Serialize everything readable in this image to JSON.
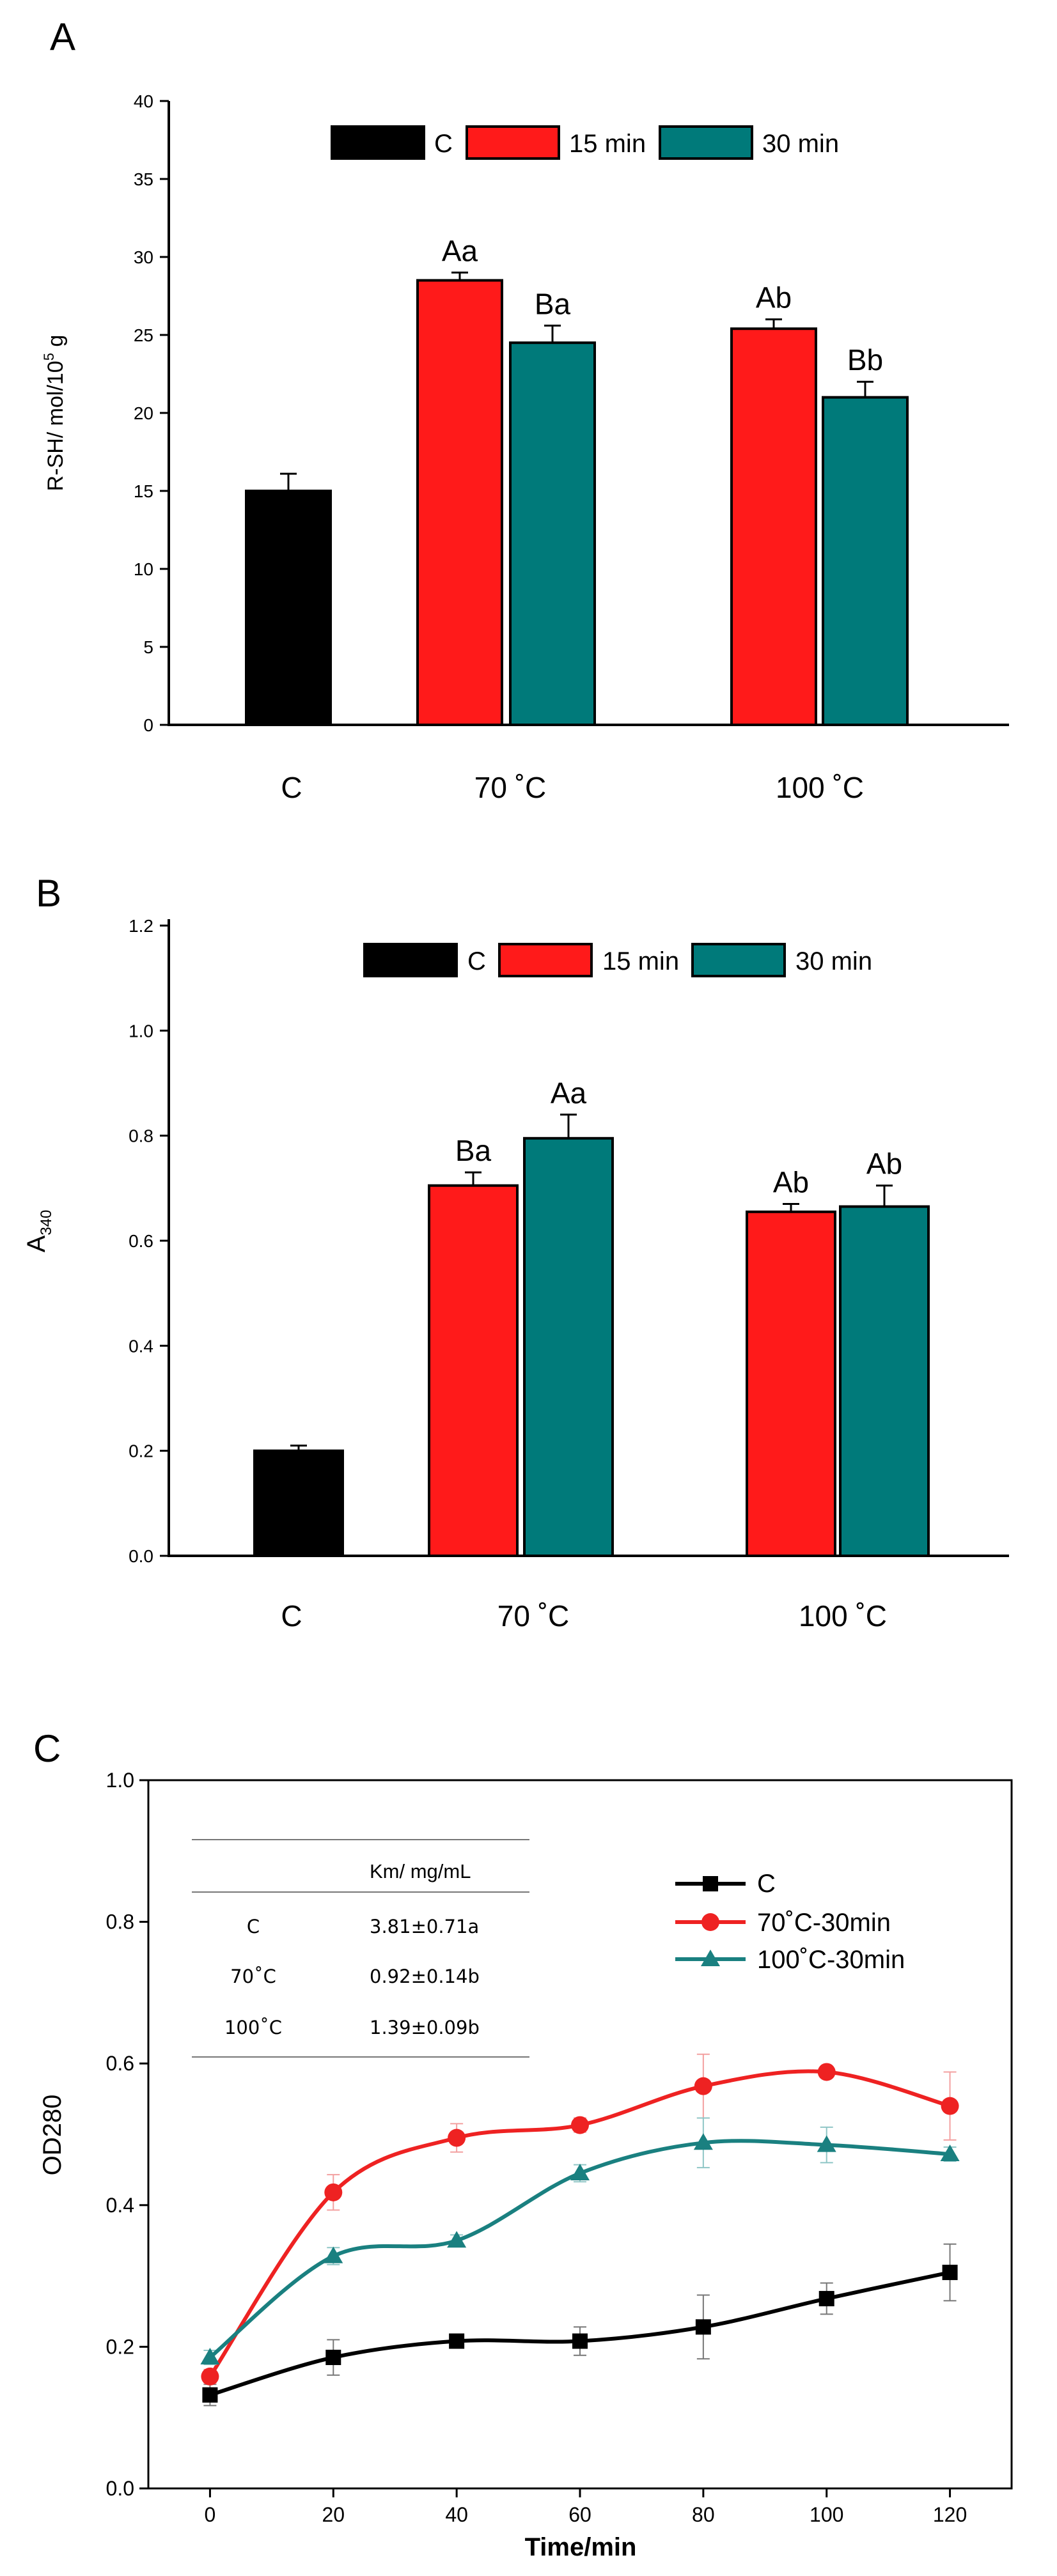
{
  "chart_data": [
    {
      "panel": "A",
      "type": "bar",
      "ylabel_main": "R-SH/ mol/10",
      "ylabel_sup": "5",
      "ylabel_tail": " g",
      "ylim": [
        0,
        40
      ],
      "yticks": [
        "0",
        "5",
        "10",
        "15",
        "20",
        "25",
        "30",
        "35",
        "40"
      ],
      "categories": [
        "C",
        "70  ˚C",
        "100  ˚C"
      ],
      "legend": [
        "C",
        "15 min",
        "30 min"
      ],
      "colors": {
        "C": "#000000",
        "15 min": "#ff1a1a",
        "30 min": "#007a7a"
      },
      "bars": [
        {
          "cat": 0,
          "series": "C",
          "value": 15.0,
          "err": 1.1,
          "label": ""
        },
        {
          "cat": 1,
          "series": "15 min",
          "value": 28.5,
          "err": 0.5,
          "label": "Aa"
        },
        {
          "cat": 1,
          "series": "30 min",
          "value": 24.5,
          "err": 1.1,
          "label": "Ba"
        },
        {
          "cat": 2,
          "series": "15 min",
          "value": 25.4,
          "err": 0.6,
          "label": "Ab"
        },
        {
          "cat": 2,
          "series": "30 min",
          "value": 21.0,
          "err": 1.0,
          "label": "Bb"
        }
      ]
    },
    {
      "panel": "B",
      "type": "bar",
      "ylabel_main": "A",
      "ylabel_sub": "340",
      "ylim": [
        0,
        1.2
      ],
      "yticks": [
        "0.0",
        "0.2",
        "0.4",
        "0.6",
        "0.8",
        "1.0",
        "1.2"
      ],
      "categories": [
        "C",
        "70  ˚C",
        "100  ˚C"
      ],
      "legend": [
        "C",
        "15 min",
        "30 min"
      ],
      "colors": {
        "C": "#000000",
        "15 min": "#ff1a1a",
        "30 min": "#007a7a"
      },
      "bars": [
        {
          "cat": 0,
          "series": "C",
          "value": 0.2,
          "err": 0.01,
          "label": ""
        },
        {
          "cat": 1,
          "series": "15 min",
          "value": 0.705,
          "err": 0.025,
          "label": "Ba"
        },
        {
          "cat": 1,
          "series": "30 min",
          "value": 0.795,
          "err": 0.045,
          "label": "Aa"
        },
        {
          "cat": 2,
          "series": "15 min",
          "value": 0.655,
          "err": 0.015,
          "label": "Ab"
        },
        {
          "cat": 2,
          "series": "30 min",
          "value": 0.665,
          "err": 0.04,
          "label": "Ab"
        }
      ]
    },
    {
      "panel": "C",
      "type": "line",
      "xlabel": "Time/min",
      "ylabel": "OD280",
      "xlim": [
        -10,
        130
      ],
      "ylim": [
        0,
        1.0
      ],
      "xticks": [
        0,
        20,
        40,
        60,
        80,
        100,
        120
      ],
      "yticks": [
        "0.0",
        "0.2",
        "0.4",
        "0.6",
        "0.8",
        "1.0"
      ],
      "x": [
        0,
        20,
        40,
        60,
        80,
        100,
        120
      ],
      "series": [
        {
          "name": "C",
          "color": "#000000",
          "marker": "square",
          "values": [
            0.132,
            0.185,
            0.208,
            0.208,
            0.228,
            0.268,
            0.305
          ],
          "errors": [
            0.015,
            0.025,
            0.008,
            0.02,
            0.045,
            0.022,
            0.04
          ]
        },
        {
          "name": "70˚C-30min",
          "color": "#ee2222",
          "marker": "circle",
          "values": [
            0.158,
            0.418,
            0.495,
            0.513,
            0.568,
            0.588,
            0.54
          ],
          "errors": [
            0.01,
            0.025,
            0.02,
            0.01,
            0.045,
            0.005,
            0.048
          ]
        },
        {
          "name": "100˚C-30min",
          "color": "#1a8080",
          "marker": "triangle",
          "values": [
            0.185,
            0.328,
            0.35,
            0.445,
            0.488,
            0.485,
            0.472
          ],
          "errors": [
            0.01,
            0.012,
            0.008,
            0.012,
            0.035,
            0.025,
            0.01
          ]
        }
      ],
      "inset_table": {
        "header": "Km/ mg/mL",
        "rows": [
          {
            "label": "C",
            "value": "3.81±0.71a"
          },
          {
            "label": "70˚C",
            "value": "0.92±0.14b"
          },
          {
            "label": "100˚C",
            "value": "1.39±0.09b"
          }
        ]
      }
    }
  ]
}
